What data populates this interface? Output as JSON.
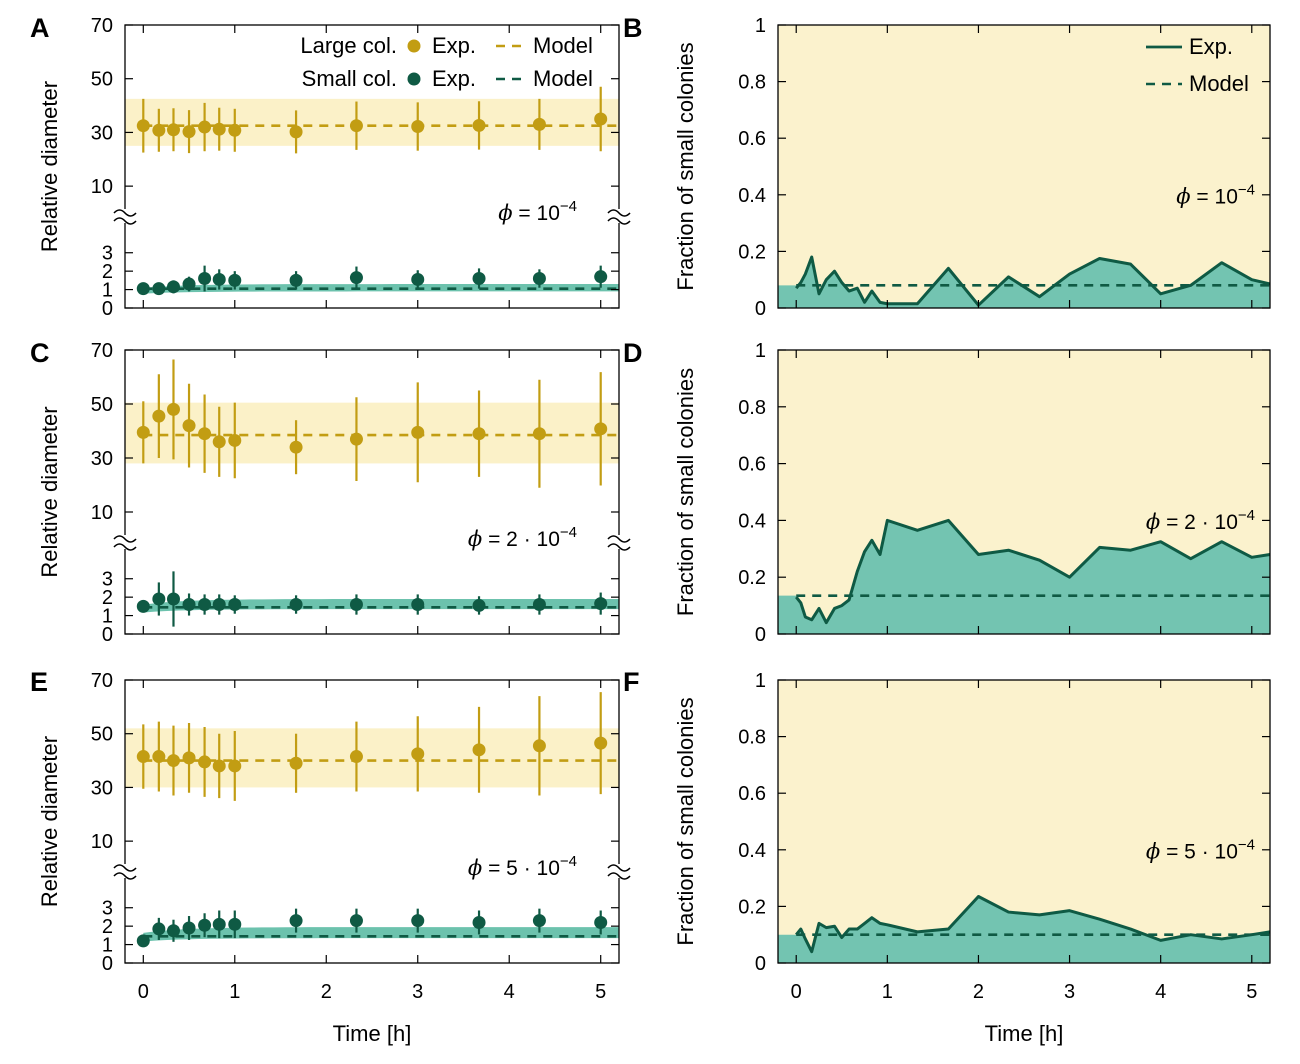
{
  "colors": {
    "large": "#c29d13",
    "small": "#0f5a44",
    "band_large": "#fbf1c8",
    "band_small": "#6cc2ad",
    "area_small": "#73c4b1",
    "bg_large": "#fbf2cd"
  },
  "shared": {
    "time_label": "Time [h]",
    "diameter_label": "Relative diameter",
    "fraction_label": "Fraction of small colonies",
    "legend_left": {
      "large_row": "Large col.",
      "small_row": "Small col.",
      "exp": "Exp.",
      "model": "Model"
    },
    "legend_right": {
      "exp": "Exp.",
      "model": "Model"
    }
  },
  "chart_data": [
    {
      "panel": "A",
      "type": "scatter",
      "phi": "10",
      "phi_exp": "−4",
      "xlabel": "",
      "ylabel": "Relative diameter",
      "xlim": [
        -0.2,
        5.2
      ],
      "upper_ylim": [
        0,
        70
      ],
      "upper_ticks": [
        "10",
        "30",
        "50",
        "70"
      ],
      "lower_ylim": [
        0,
        3.8
      ],
      "lower_ticks": [
        "0",
        "1",
        "2",
        "3"
      ],
      "x_ticks": [],
      "large": {
        "t": [
          0,
          0.17,
          0.33,
          0.5,
          0.67,
          0.83,
          1.0,
          1.67,
          2.33,
          3.0,
          3.67,
          4.33,
          5.0
        ],
        "mean": [
          32.5,
          30.8,
          31,
          30.3,
          32,
          31.2,
          30.8,
          30.2,
          32.5,
          32.2,
          32.6,
          33,
          35
        ],
        "err": [
          10,
          8,
          8,
          8,
          9,
          8,
          8,
          8,
          9,
          9,
          9,
          9.5,
          12
        ]
      },
      "large_model": 32.5,
      "large_band": [
        25,
        42.5
      ],
      "small": {
        "t": [
          0,
          0.17,
          0.33,
          0.5,
          0.67,
          0.83,
          1.0,
          1.67,
          2.33,
          3.0,
          3.67,
          4.33,
          5.0
        ],
        "mean": [
          1.05,
          1.05,
          1.15,
          1.3,
          1.6,
          1.55,
          1.5,
          1.5,
          1.65,
          1.55,
          1.6,
          1.6,
          1.7
        ],
        "err": [
          0.25,
          0.25,
          0.35,
          0.4,
          0.7,
          0.55,
          0.5,
          0.5,
          0.6,
          0.5,
          0.55,
          0.5,
          0.6
        ]
      },
      "small_model": 1.05,
      "small_band": [
        0.9,
        1.3
      ]
    },
    {
      "panel": "B",
      "type": "area",
      "phi": "10",
      "phi_exp": "−4",
      "xlabel": "",
      "ylabel": "Fraction of small colonies",
      "xlim": [
        -0.2,
        5.2
      ],
      "ylim": [
        0,
        1
      ],
      "y_ticks": [
        "0",
        "0.2",
        "0.4",
        "0.6",
        "0.8",
        "1"
      ],
      "x_ticks": [],
      "x": [
        0,
        0.05,
        0.1,
        0.17,
        0.25,
        0.33,
        0.42,
        0.5,
        0.58,
        0.67,
        0.75,
        0.83,
        0.92,
        1.0,
        1.33,
        1.67,
        2.0,
        2.33,
        2.67,
        3.0,
        3.33,
        3.67,
        4.0,
        4.33,
        4.67,
        5.0,
        5.2
      ],
      "y": [
        0.07,
        0.09,
        0.12,
        0.18,
        0.05,
        0.1,
        0.13,
        0.09,
        0.06,
        0.07,
        0.02,
        0.06,
        0.02,
        0.015,
        0.015,
        0.14,
        0.01,
        0.11,
        0.04,
        0.12,
        0.175,
        0.155,
        0.05,
        0.08,
        0.16,
        0.1,
        0.085
      ],
      "model": 0.08
    },
    {
      "panel": "C",
      "type": "scatter",
      "phi": "2 · 10",
      "phi_exp": "−4",
      "xlabel": "",
      "ylabel": "Relative diameter",
      "xlim": [
        -0.2,
        5.2
      ],
      "upper_ylim": [
        0,
        70
      ],
      "upper_ticks": [
        "10",
        "30",
        "50",
        "70"
      ],
      "lower_ylim": [
        0,
        3.8
      ],
      "lower_ticks": [
        "0",
        "1",
        "2",
        "3"
      ],
      "x_ticks": [],
      "large": {
        "t": [
          0,
          0.17,
          0.33,
          0.5,
          0.67,
          0.83,
          1.0,
          1.67,
          2.33,
          3.0,
          3.67,
          4.33,
          5.0
        ],
        "mean": [
          39.5,
          45.5,
          48,
          42,
          39,
          36,
          36.5,
          34,
          37,
          39.5,
          39,
          39,
          40.8
        ],
        "err": [
          11.5,
          15.5,
          18.5,
          15.5,
          14.5,
          13,
          14,
          10,
          15.5,
          18.5,
          16,
          20,
          21
        ]
      },
      "large_model": 38.5,
      "large_band": [
        28,
        50.5
      ],
      "small": {
        "t": [
          0,
          0.17,
          0.33,
          0.5,
          0.67,
          0.83,
          1.0,
          1.67,
          2.33,
          3.0,
          3.67,
          4.33,
          5.0
        ],
        "mean": [
          1.5,
          1.9,
          1.9,
          1.6,
          1.6,
          1.6,
          1.6,
          1.6,
          1.6,
          1.6,
          1.55,
          1.6,
          1.65
        ],
        "err": [
          0.3,
          0.9,
          1.5,
          0.6,
          0.55,
          0.55,
          0.5,
          0.5,
          0.55,
          0.55,
          0.5,
          0.55,
          0.6
        ]
      },
      "small_model": 1.45,
      "small_band": [
        1.35,
        1.9
      ]
    },
    {
      "panel": "D",
      "type": "area",
      "phi": "2 · 10",
      "phi_exp": "−4",
      "xlabel": "",
      "ylabel": "Fraction of small colonies",
      "xlim": [
        -0.2,
        5.2
      ],
      "ylim": [
        0,
        1
      ],
      "y_ticks": [
        "0",
        "0.2",
        "0.4",
        "0.6",
        "0.8",
        "1"
      ],
      "x_ticks": [],
      "x": [
        0,
        0.05,
        0.1,
        0.17,
        0.25,
        0.33,
        0.42,
        0.5,
        0.58,
        0.67,
        0.75,
        0.83,
        0.92,
        1.0,
        1.33,
        1.67,
        2.0,
        2.33,
        2.67,
        3.0,
        3.33,
        3.67,
        4.0,
        4.33,
        4.67,
        5.0,
        5.2
      ],
      "y": [
        0.13,
        0.11,
        0.06,
        0.05,
        0.09,
        0.04,
        0.09,
        0.1,
        0.12,
        0.22,
        0.29,
        0.33,
        0.28,
        0.4,
        0.365,
        0.4,
        0.28,
        0.295,
        0.26,
        0.2,
        0.305,
        0.295,
        0.325,
        0.265,
        0.325,
        0.27,
        0.28
      ],
      "model": 0.135
    },
    {
      "panel": "E",
      "type": "scatter",
      "phi": "5 · 10",
      "phi_exp": "−4",
      "xlabel": "Time [h]",
      "ylabel": "Relative diameter",
      "xlim": [
        -0.2,
        5.2
      ],
      "upper_ylim": [
        0,
        70
      ],
      "upper_ticks": [
        "10",
        "30",
        "50",
        "70"
      ],
      "lower_ylim": [
        0,
        3.8
      ],
      "lower_ticks": [
        "0",
        "1",
        "2",
        "3"
      ],
      "x_ticks": [
        "0",
        "1",
        "2",
        "3",
        "4",
        "5"
      ],
      "large": {
        "t": [
          0,
          0.17,
          0.33,
          0.5,
          0.67,
          0.83,
          1.0,
          1.67,
          2.33,
          3.0,
          3.67,
          4.33,
          5.0
        ],
        "mean": [
          41.5,
          41.5,
          40,
          41,
          39.5,
          38,
          38,
          39,
          41.5,
          42.5,
          44,
          45.5,
          46.5
        ],
        "err": [
          12,
          13,
          13,
          13,
          13,
          12,
          13,
          11,
          13,
          14,
          16,
          18.5,
          19
        ]
      },
      "large_model": 40,
      "large_band": [
        30,
        52
      ],
      "small": {
        "t": [
          0,
          0.17,
          0.33,
          0.5,
          0.67,
          0.83,
          1.0,
          1.67,
          2.33,
          3.0,
          3.67,
          4.33,
          5.0
        ],
        "mean": [
          1.2,
          1.85,
          1.75,
          1.9,
          2.05,
          2.1,
          2.1,
          2.3,
          2.3,
          2.3,
          2.2,
          2.3,
          2.2
        ],
        "err": [
          0.15,
          0.6,
          0.6,
          0.65,
          0.65,
          0.75,
          0.75,
          0.65,
          0.65,
          0.65,
          0.65,
          0.65,
          0.65
        ]
      },
      "small_model": 1.45,
      "small_band": [
        1.35,
        1.95
      ]
    },
    {
      "panel": "F",
      "type": "area",
      "phi": "5 · 10",
      "phi_exp": "−4",
      "xlabel": "Time [h]",
      "ylabel": "Fraction of small colonies",
      "xlim": [
        -0.2,
        5.2
      ],
      "ylim": [
        0,
        1
      ],
      "y_ticks": [
        "0",
        "0.2",
        "0.4",
        "0.6",
        "0.8",
        "1"
      ],
      "x_ticks": [
        "0",
        "1",
        "2",
        "3",
        "4",
        "5"
      ],
      "x": [
        0,
        0.05,
        0.1,
        0.17,
        0.25,
        0.33,
        0.42,
        0.5,
        0.58,
        0.67,
        0.75,
        0.83,
        0.92,
        1.0,
        1.33,
        1.67,
        2.0,
        2.33,
        2.67,
        3.0,
        3.33,
        3.67,
        4.0,
        4.33,
        4.67,
        5.0,
        5.2
      ],
      "y": [
        0.1,
        0.12,
        0.085,
        0.04,
        0.14,
        0.125,
        0.13,
        0.09,
        0.12,
        0.12,
        0.14,
        0.16,
        0.14,
        0.135,
        0.11,
        0.12,
        0.235,
        0.18,
        0.17,
        0.185,
        0.155,
        0.12,
        0.08,
        0.1,
        0.085,
        0.1,
        0.11
      ],
      "model": 0.1
    }
  ]
}
